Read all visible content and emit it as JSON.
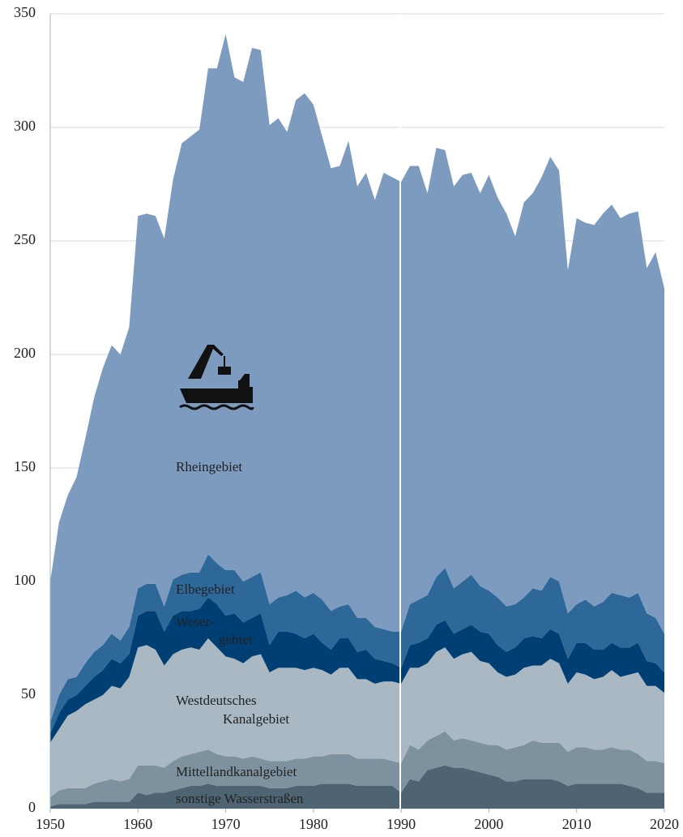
{
  "chart_data": {
    "type": "stacked_area",
    "x": [
      1950,
      1951,
      1952,
      1953,
      1954,
      1955,
      1956,
      1957,
      1958,
      1959,
      1960,
      1961,
      1962,
      1963,
      1964,
      1965,
      1966,
      1967,
      1968,
      1969,
      1970,
      1971,
      1972,
      1973,
      1974,
      1975,
      1976,
      1977,
      1978,
      1979,
      1980,
      1981,
      1982,
      1983,
      1984,
      1985,
      1986,
      1987,
      1988,
      1989,
      1990,
      1991,
      1992,
      1993,
      1994,
      1995,
      1996,
      1997,
      1998,
      1999,
      2000,
      2001,
      2002,
      2003,
      2004,
      2005,
      2006,
      2007,
      2008,
      2009,
      2010,
      2011,
      2012,
      2013,
      2014,
      2015,
      2016,
      2017,
      2018,
      2019,
      2020
    ],
    "series": [
      {
        "name": "sonstige Wasserstraßen",
        "color": "#4f6472",
        "values": [
          1,
          2,
          2,
          2,
          2,
          3,
          3,
          3,
          3,
          3,
          7,
          6,
          7,
          7,
          8,
          9,
          10,
          10,
          11,
          10,
          10,
          10,
          10,
          10,
          10,
          9,
          9,
          9,
          10,
          10,
          10,
          11,
          11,
          11,
          11,
          10,
          10,
          10,
          10,
          10,
          7,
          13,
          12,
          17,
          18,
          19,
          18,
          18,
          17,
          16,
          15,
          14,
          12,
          12,
          13,
          13,
          13,
          13,
          12,
          10,
          11,
          11,
          11,
          11,
          11,
          11,
          10,
          9,
          7,
          7,
          7
        ]
      },
      {
        "name": "Mittellandkanalgebiet",
        "color": "#7d929e",
        "values": [
          4,
          6,
          7,
          7,
          7,
          8,
          9,
          10,
          9,
          10,
          12,
          13,
          12,
          11,
          13,
          14,
          14,
          15,
          15,
          14,
          13,
          13,
          12,
          13,
          12,
          12,
          12,
          12,
          12,
          12,
          13,
          12,
          13,
          13,
          13,
          12,
          12,
          12,
          12,
          11,
          13,
          15,
          14,
          13,
          14,
          15,
          12,
          13,
          13,
          13,
          13,
          14,
          14,
          15,
          15,
          17,
          16,
          16,
          17,
          15,
          16,
          16,
          15,
          15,
          16,
          15,
          16,
          15,
          14,
          14,
          13
        ]
      },
      {
        "name": "Westdeutsches\nKanalgebiet",
        "color": "#a9b8c2",
        "values": [
          24,
          27,
          32,
          34,
          37,
          37,
          38,
          41,
          41,
          45,
          52,
          53,
          51,
          45,
          47,
          47,
          47,
          45,
          49,
          47,
          44,
          43,
          42,
          44,
          46,
          39,
          41,
          41,
          40,
          39,
          39,
          38,
          35,
          38,
          38,
          35,
          35,
          33,
          34,
          35,
          35,
          34,
          36,
          34,
          37,
          37,
          36,
          37,
          39,
          36,
          36,
          32,
          32,
          32,
          34,
          33,
          34,
          37,
          35,
          30,
          33,
          32,
          31,
          32,
          34,
          32,
          33,
          36,
          33,
          33,
          31
        ]
      },
      {
        "name": "Weser-\ngebiet",
        "color": "#003f73",
        "values": [
          4,
          7,
          7,
          7,
          8,
          10,
          11,
          12,
          11,
          10,
          14,
          15,
          17,
          15,
          17,
          17,
          16,
          18,
          18,
          19,
          18,
          20,
          18,
          17,
          18,
          12,
          16,
          16,
          15,
          14,
          15,
          12,
          11,
          13,
          13,
          12,
          13,
          11,
          9,
          8,
          7,
          10,
          11,
          11,
          12,
          12,
          11,
          11,
          12,
          13,
          13,
          12,
          11,
          12,
          13,
          13,
          12,
          13,
          13,
          11,
          13,
          14,
          13,
          12,
          12,
          13,
          12,
          13,
          11,
          10,
          9
        ]
      },
      {
        "name": "Elbegebiet",
        "color": "#2e6899",
        "values": [
          5,
          8,
          9,
          8,
          10,
          11,
          11,
          11,
          10,
          12,
          12,
          12,
          12,
          11,
          16,
          16,
          17,
          16,
          19,
          18,
          20,
          19,
          18,
          18,
          18,
          18,
          15,
          16,
          19,
          18,
          18,
          19,
          17,
          14,
          15,
          15,
          14,
          14,
          14,
          14,
          16,
          18,
          19,
          19,
          21,
          23,
          20,
          21,
          22,
          20,
          19,
          21,
          20,
          19,
          18,
          21,
          21,
          23,
          23,
          20,
          17,
          19,
          19,
          21,
          22,
          23,
          22,
          22,
          21,
          20,
          17
        ]
      },
      {
        "name": "Rheingebiet",
        "color": "#7d9bbf",
        "values": [
          62,
          76,
          81,
          88,
          99,
          112,
          122,
          127,
          126,
          132,
          164,
          163,
          162,
          162,
          176,
          190,
          192,
          195,
          214,
          218,
          236,
          217,
          220,
          233,
          230,
          211,
          211,
          204,
          216,
          222,
          215,
          204,
          195,
          194,
          204,
          190,
          196,
          188,
          201,
          200,
          198,
          193,
          191,
          177,
          189,
          184,
          177,
          179,
          177,
          173,
          183,
          176,
          173,
          162,
          174,
          174,
          182,
          185,
          181,
          151,
          170,
          166,
          168,
          171,
          171,
          166,
          169,
          168,
          152,
          161,
          152
        ]
      }
    ],
    "xlim": [
      1950,
      2020
    ],
    "xticks": [
      1950,
      1960,
      1970,
      1980,
      1990,
      2000,
      2010,
      2020
    ],
    "ylim": [
      0,
      350
    ],
    "yticks": [
      0,
      50,
      100,
      150,
      200,
      250,
      300,
      350
    ],
    "grid": true
  }
}
